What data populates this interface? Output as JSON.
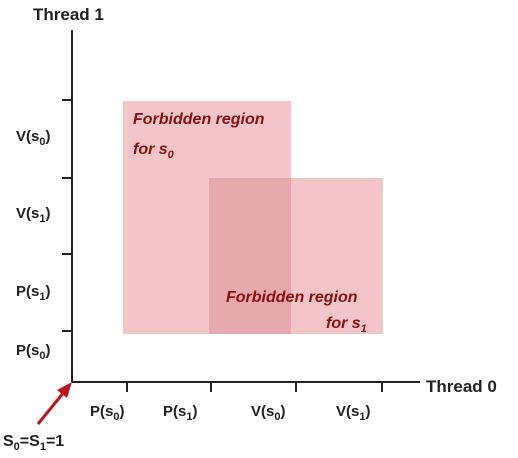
{
  "axes": {
    "y_title": "Thread 1",
    "x_title": "Thread 0",
    "y_ticks": [
      {
        "base": "V(s",
        "sub": "0",
        "close": ")"
      },
      {
        "base": "V(s",
        "sub": "1",
        "close": ")"
      },
      {
        "base": "P(s",
        "sub": "1",
        "close": ")"
      },
      {
        "base": "P(s",
        "sub": "0",
        "close": ")"
      }
    ],
    "x_ticks": [
      {
        "base": "P(s",
        "sub": "0",
        "close": ")"
      },
      {
        "base": "P(s",
        "sub": "1",
        "close": ")"
      },
      {
        "base": "V(s",
        "sub": "0",
        "close": ")"
      },
      {
        "base": "V(s",
        "sub": "1",
        "close": ")"
      }
    ]
  },
  "regions": [
    {
      "line1": "Forbidden region",
      "line2_base": "for s",
      "line2_sub": "0"
    },
    {
      "line1": "Forbidden region",
      "line2_base": "for s",
      "line2_sub": "1"
    }
  ],
  "origin_label": {
    "s0": "S",
    "s0_sub": "0",
    "eq": "=S",
    "s1_sub": "1",
    "value": "=1"
  },
  "colors": {
    "region_fill": "#f2c6c9",
    "region_overlap": "#e6a9ad",
    "region_text": "#8b1010",
    "arrow": "#c0141c",
    "axis": "#222222"
  }
}
